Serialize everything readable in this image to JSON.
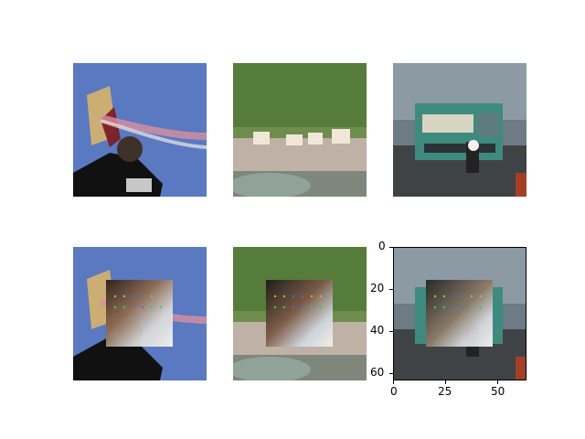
{
  "figure": {
    "rows": 2,
    "cols": 3,
    "top_row": [
      {
        "scene": "person-flying-kite"
      },
      {
        "scene": "zebras-by-water"
      },
      {
        "scene": "bus-on-road"
      }
    ],
    "bottom_row": [
      {
        "scene": "person-flying-kite",
        "occluded": true
      },
      {
        "scene": "zebras-by-water",
        "occluded": true
      },
      {
        "scene": "bus-on-road",
        "occluded": true
      }
    ]
  },
  "axes": {
    "xticks": [
      "0",
      "25",
      "50"
    ],
    "yticks": [
      "0",
      "20",
      "40",
      "60"
    ],
    "xlim": [
      0,
      64
    ],
    "ylim": [
      64,
      0
    ]
  },
  "colors": {
    "sky": "#5a79c0",
    "grass": "#6f8d4c",
    "road": "#3f4346",
    "bus": "#3f8a7f",
    "dot_blue": "#4d6bff",
    "dot_green": "#34d06a",
    "dot_orange": "#e8a14b"
  }
}
